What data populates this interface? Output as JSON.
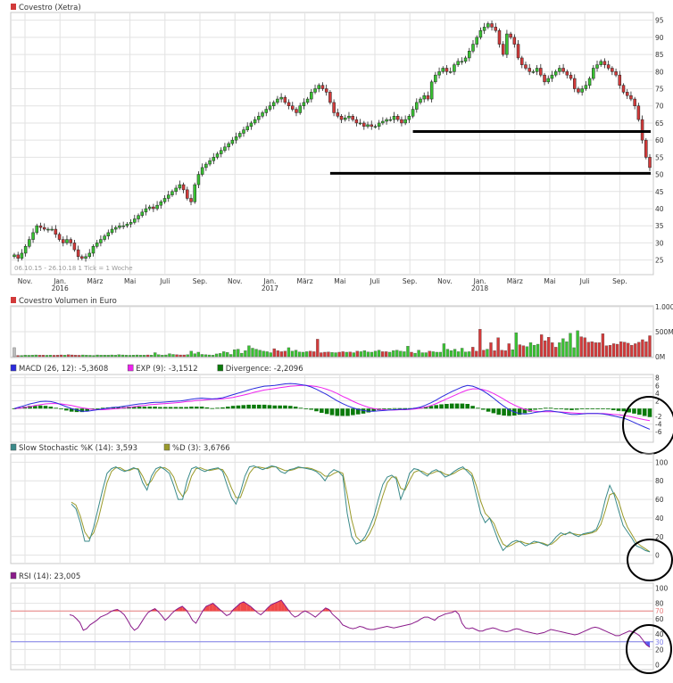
{
  "colors": {
    "up": "#39c232",
    "down": "#d23a3a",
    "grid": "#e2e2e2",
    "frame": "#c8c8c8",
    "text": "#333333",
    "macd": "#2b2bdd",
    "exp": "#ee22ee",
    "div": "#0a7a0a",
    "stochK": "#3a8a8a",
    "stochD": "#9a9a2a",
    "rsi": "#8a1a8a",
    "rsiFill": "#f04a4a",
    "hline70": "#e98080",
    "hline30": "#8080e9"
  },
  "chart_data": [
    {
      "type": "candlestick",
      "title": "Covestro (Xetra)",
      "legend_marker": "down",
      "yticks": [
        25,
        30,
        35,
        40,
        45,
        50,
        55,
        60,
        65,
        70,
        75,
        80,
        85,
        90,
        95
      ],
      "ylim": [
        21,
        97
      ],
      "xticks": [
        "Nov.",
        "Jan.",
        "März",
        "Mai",
        "Juli",
        "Sep.",
        "Nov.",
        "Jan.",
        "März",
        "Mai",
        "Juli",
        "Sep.",
        "Nov.",
        "Jan.",
        "März",
        "Mai",
        "Juli",
        "Sep."
      ],
      "year_labels": [
        "2016",
        "2017",
        "2018"
      ],
      "footer": "06.10.15 - 26.10.18   1 Tick = 1 Woche",
      "support_lines": [
        62.5,
        50.3
      ],
      "close": [
        26.5,
        25.5,
        27,
        29,
        31,
        33,
        35,
        34.5,
        34,
        34,
        34,
        32.5,
        31,
        30,
        31,
        30,
        28,
        26,
        25.5,
        26,
        27,
        29,
        30,
        31,
        32,
        33,
        34,
        34.5,
        35,
        35,
        35.5,
        36,
        37,
        38,
        39,
        40,
        40.5,
        40,
        41,
        42,
        43,
        44,
        45,
        46,
        47,
        45.5,
        43,
        42,
        47,
        50,
        52,
        53,
        54,
        55,
        56,
        57,
        58,
        59,
        60,
        61,
        62,
        63,
        64,
        65,
        66,
        67,
        68,
        69,
        70,
        71,
        72,
        72.5,
        71,
        70,
        69,
        68,
        70,
        71,
        72,
        74,
        75,
        76,
        75,
        74,
        71,
        68,
        67,
        66,
        66.5,
        67,
        66,
        65,
        65,
        64,
        64.5,
        64,
        64,
        65,
        65.5,
        66,
        66,
        67,
        66,
        65,
        66,
        67,
        69,
        71,
        72,
        73,
        72,
        77,
        79,
        80,
        81,
        80,
        80,
        82,
        83,
        83,
        84,
        86,
        88,
        90,
        92,
        93,
        94,
        93,
        92,
        88,
        85,
        91,
        90,
        88,
        84,
        82,
        81,
        80,
        80,
        81,
        79,
        77,
        78,
        79,
        80,
        81,
        80,
        79,
        78,
        75,
        74,
        75,
        76,
        78,
        81,
        82,
        83,
        82,
        81,
        80,
        79,
        76,
        74,
        73,
        72,
        70,
        66,
        60,
        55,
        52
      ]
    },
    {
      "type": "bar",
      "title": "Covestro Volumen in Euro",
      "yticks": [
        "1.000",
        "500M",
        "0M"
      ],
      "ylim": [
        0,
        1000
      ],
      "values": [
        180,
        25,
        25,
        30,
        28,
        30,
        35,
        30,
        30,
        28,
        32,
        28,
        30,
        35,
        30,
        40,
        35,
        30,
        28,
        35,
        30,
        28,
        25,
        35,
        30,
        32,
        30,
        35,
        30,
        40,
        35,
        30,
        28,
        32,
        35,
        30,
        30,
        35,
        32,
        80,
        40,
        30,
        35,
        60,
        45,
        40,
        35,
        35,
        40,
        110,
        60,
        90,
        45,
        40,
        35,
        30,
        55,
        65,
        100,
        85,
        45,
        140,
        150,
        70,
        120,
        220,
        170,
        150,
        130,
        110,
        100,
        80,
        160,
        120,
        100,
        110,
        180,
        110,
        130,
        95,
        90,
        100,
        110,
        100,
        350,
        80,
        90,
        95,
        85,
        80,
        90,
        100,
        90,
        95,
        80,
        110,
        100,
        120,
        95,
        90,
        110,
        130,
        100,
        100,
        90,
        120,
        130,
        110,
        100,
        210,
        90,
        70,
        130,
        80,
        80,
        110,
        100,
        90,
        90,
        260,
        150,
        120,
        150,
        100,
        170,
        95,
        100,
        190,
        110,
        550,
        130,
        150,
        280,
        120,
        380,
        130,
        120,
        260,
        140,
        480,
        240,
        220,
        200,
        280,
        230,
        250,
        440,
        320,
        390,
        280,
        190,
        280,
        360,
        300,
        470,
        180,
        520,
        400,
        380,
        290,
        300,
        280,
        280,
        460,
        220,
        230,
        260,
        250,
        300,
        290,
        270,
        230,
        260,
        290,
        340,
        300,
        420
      ]
    },
    {
      "type": "line",
      "title": "MACD",
      "legend": [
        {
          "label": "MACD (26, 12): -5,3608",
          "color": "macd"
        },
        {
          "label": "EXP (9): -3,1512",
          "color": "exp"
        },
        {
          "label": "Divergence: -2,2096",
          "color": "div"
        }
      ],
      "yticks": [
        8,
        6,
        4,
        2,
        -2,
        -4,
        -6
      ],
      "ylim": [
        -8.5,
        8.6
      ],
      "macd": [
        0,
        0.4,
        0.8,
        1.2,
        1.5,
        1.8,
        1.9,
        1.8,
        1.5,
        1.0,
        0.5,
        0.0,
        -0.4,
        -0.7,
        -0.7,
        -0.5,
        -0.3,
        -0.1,
        0.1,
        0.3,
        0.4,
        0.6,
        0.8,
        1.0,
        1.2,
        1.3,
        1.5,
        1.6,
        1.6,
        1.7,
        1.8,
        1.9,
        2.0,
        2.2,
        2.4,
        2.6,
        2.7,
        2.6,
        2.5,
        2.6,
        2.8,
        3.2,
        3.6,
        4.0,
        4.4,
        4.8,
        5.2,
        5.5,
        5.8,
        5.9,
        6.0,
        6.2,
        6.4,
        6.5,
        6.4,
        6.2,
        6.0,
        5.6,
        5.0,
        4.3,
        3.6,
        2.8,
        2.0,
        1.3,
        0.7,
        0.2,
        -0.2,
        -0.5,
        -0.7,
        -0.7,
        -0.6,
        -0.5,
        -0.4,
        -0.3,
        -0.2,
        -0.2,
        -0.1,
        0.1,
        0.4,
        0.9,
        1.5,
        2.2,
        3.0,
        3.7,
        4.4,
        5.0,
        5.6,
        6.0,
        5.8,
        5.3,
        4.6,
        3.7,
        2.7,
        1.6,
        0.6,
        -0.3,
        -0.9,
        -1.3,
        -1.4,
        -1.3,
        -1.0,
        -0.8,
        -0.6,
        -0.6,
        -0.8,
        -1.0,
        -1.3,
        -1.5,
        -1.5,
        -1.4,
        -1.3,
        -1.3,
        -1.3,
        -1.4,
        -1.6,
        -1.9,
        -2.2,
        -2.5,
        -3.0,
        -3.6,
        -4.2,
        -4.8,
        -5.36
      ],
      "exp": [
        0,
        0.1,
        0.3,
        0.5,
        0.8,
        1.0,
        1.2,
        1.3,
        1.3,
        1.2,
        1.0,
        0.8,
        0.5,
        0.2,
        0.0,
        -0.2,
        -0.3,
        -0.3,
        -0.2,
        -0.1,
        0.0,
        0.2,
        0.3,
        0.5,
        0.7,
        0.8,
        1.0,
        1.1,
        1.2,
        1.3,
        1.4,
        1.5,
        1.6,
        1.8,
        1.9,
        2.1,
        2.2,
        2.3,
        2.4,
        2.4,
        2.5,
        2.7,
        2.9,
        3.2,
        3.5,
        3.8,
        4.2,
        4.5,
        4.8,
        5.0,
        5.2,
        5.4,
        5.6,
        5.8,
        5.9,
        6.0,
        6.0,
        5.9,
        5.7,
        5.4,
        5.0,
        4.5,
        3.9,
        3.2,
        2.6,
        1.9,
        1.3,
        0.8,
        0.3,
        0.0,
        -0.2,
        -0.3,
        -0.4,
        -0.4,
        -0.3,
        -0.3,
        -0.2,
        -0.1,
        0.1,
        0.4,
        0.8,
        1.3,
        1.9,
        2.5,
        3.1,
        3.7,
        4.3,
        4.8,
        5.1,
        5.1,
        4.9,
        4.5,
        3.9,
        3.2,
        2.4,
        1.6,
        0.9,
        0.3,
        -0.2,
        -0.5,
        -0.7,
        -0.8,
        -0.8,
        -0.8,
        -0.8,
        -0.9,
        -1.0,
        -1.1,
        -1.2,
        -1.3,
        -1.3,
        -1.3,
        -1.3,
        -1.3,
        -1.4,
        -1.5,
        -1.6,
        -1.8,
        -2.0,
        -2.3,
        -2.6,
        -2.9,
        -3.15
      ],
      "divergence": [
        0,
        0.3,
        0.5,
        0.7,
        0.7,
        0.8,
        0.7,
        0.5,
        0.2,
        -0.2,
        -0.5,
        -0.8,
        -0.9,
        -0.9,
        -0.7,
        -0.3,
        0.0,
        0.2,
        0.3,
        0.4,
        0.4,
        0.4,
        0.5,
        0.5,
        0.5,
        0.5,
        0.5,
        0.5,
        0.4,
        0.4,
        0.4,
        0.4,
        0.4,
        0.4,
        0.5,
        0.5,
        0.5,
        0.3,
        0.1,
        0.2,
        0.3,
        0.5,
        0.7,
        0.8,
        0.9,
        1.0,
        1.0,
        1.0,
        1.0,
        0.9,
        0.8,
        0.8,
        0.8,
        0.7,
        0.5,
        0.2,
        0.0,
        -0.3,
        -0.7,
        -1.1,
        -1.4,
        -1.7,
        -1.9,
        -1.9,
        -1.9,
        -1.7,
        -1.5,
        -1.3,
        -1.0,
        -0.7,
        -0.4,
        -0.2,
        0.0,
        0.1,
        0.1,
        0.1,
        0.1,
        0.2,
        0.3,
        0.5,
        0.7,
        0.9,
        1.1,
        1.2,
        1.3,
        1.3,
        1.3,
        1.2,
        0.7,
        0.2,
        -0.3,
        -0.8,
        -1.2,
        -1.6,
        -1.8,
        -1.9,
        -1.8,
        -1.6,
        -1.2,
        -0.8,
        -0.3,
        0.0,
        0.2,
        0.2,
        0.0,
        -0.1,
        -0.3,
        -0.4,
        -0.3,
        -0.1,
        0.0,
        0.0,
        0.0,
        -0.1,
        -0.2,
        -0.4,
        -0.6,
        -0.7,
        -1.0,
        -1.3,
        -1.6,
        -1.9,
        -2.2
      ]
    },
    {
      "type": "line",
      "title": "Slow Stochastic",
      "legend": [
        {
          "label": "Slow Stochastic %K (14): 3,593",
          "color": "stochK"
        },
        {
          "label": "%D (3): 3,6766",
          "color": "stochD"
        }
      ],
      "yticks": [
        100,
        80,
        60,
        40,
        20,
        0
      ],
      "ylim": [
        -8,
        108
      ],
      "k": [
        55,
        50,
        35,
        15,
        15,
        30,
        50,
        70,
        88,
        93,
        95,
        92,
        90,
        92,
        94,
        92,
        78,
        70,
        85,
        93,
        95,
        92,
        88,
        75,
        60,
        60,
        80,
        93,
        95,
        92,
        90,
        92,
        93,
        94,
        90,
        75,
        62,
        55,
        68,
        85,
        95,
        96,
        94,
        92,
        94,
        96,
        95,
        90,
        88,
        92,
        93,
        95,
        94,
        93,
        92,
        90,
        86,
        80,
        88,
        92,
        90,
        85,
        45,
        20,
        12,
        14,
        20,
        30,
        42,
        60,
        76,
        84,
        86,
        82,
        60,
        72,
        88,
        93,
        92,
        88,
        85,
        90,
        92,
        89,
        84,
        86,
        90,
        93,
        95,
        90,
        85,
        65,
        45,
        35,
        40,
        28,
        15,
        5,
        10,
        14,
        16,
        14,
        10,
        12,
        15,
        14,
        12,
        10,
        14,
        20,
        24,
        22,
        25,
        22,
        20,
        23,
        24,
        25,
        28,
        40,
        60,
        75,
        65,
        48,
        32,
        25,
        18,
        10,
        8,
        5,
        3.6
      ],
      "d": [
        57,
        54,
        42,
        25,
        18,
        24,
        38,
        58,
        78,
        90,
        94,
        94,
        91,
        91,
        93,
        93,
        85,
        75,
        80,
        89,
        94,
        94,
        91,
        84,
        70,
        63,
        70,
        85,
        93,
        94,
        92,
        91,
        92,
        93,
        92,
        84,
        72,
        62,
        62,
        75,
        88,
        94,
        95,
        94,
        93,
        95,
        95,
        93,
        91,
        91,
        92,
        94,
        94,
        94,
        93,
        91,
        89,
        85,
        85,
        88,
        90,
        88,
        65,
        38,
        20,
        15,
        16,
        23,
        33,
        48,
        64,
        78,
        84,
        84,
        72,
        70,
        80,
        89,
        91,
        90,
        87,
        88,
        90,
        90,
        87,
        86,
        88,
        91,
        93,
        92,
        88,
        75,
        58,
        45,
        40,
        34,
        22,
        12,
        9,
        11,
        14,
        15,
        13,
        12,
        13,
        14,
        13,
        11,
        12,
        16,
        21,
        23,
        24,
        23,
        22,
        22,
        23,
        24,
        26,
        33,
        48,
        65,
        67,
        58,
        42,
        30,
        22,
        14,
        10,
        7,
        3.7
      ]
    },
    {
      "type": "line",
      "title": "RSI",
      "legend": [
        {
          "label": "RSI (14): 23,005",
          "color": "rsi"
        }
      ],
      "yticks": [
        100,
        80,
        70,
        60,
        40,
        30,
        20,
        0
      ],
      "ylim": [
        -5,
        105
      ],
      "levels": [
        70,
        30
      ],
      "values": [
        65,
        64,
        60,
        55,
        45,
        47,
        52,
        55,
        58,
        62,
        64,
        66,
        69,
        71,
        72,
        69,
        65,
        58,
        50,
        45,
        48,
        55,
        62,
        68,
        71,
        73,
        69,
        64,
        58,
        62,
        67,
        71,
        74,
        76,
        72,
        66,
        58,
        54,
        62,
        70,
        76,
        78,
        80,
        76,
        72,
        68,
        64,
        66,
        72,
        76,
        80,
        82,
        79,
        76,
        72,
        68,
        65,
        69,
        74,
        78,
        80,
        82,
        84,
        78,
        72,
        66,
        62,
        64,
        68,
        70,
        68,
        65,
        62,
        66,
        70,
        74,
        72,
        66,
        62,
        58,
        52,
        50,
        48,
        47,
        48,
        50,
        49,
        47,
        46,
        46,
        47,
        48,
        49,
        50,
        49,
        48,
        49,
        50,
        51,
        52,
        53,
        55,
        57,
        60,
        62,
        62,
        60,
        58,
        62,
        64,
        66,
        67,
        68,
        70,
        66,
        54,
        48,
        47,
        48,
        46,
        44,
        44,
        46,
        47,
        48,
        47,
        45,
        44,
        43,
        44,
        46,
        47,
        46,
        44,
        43,
        42,
        41,
        40,
        41,
        42,
        44,
        46,
        45,
        44,
        43,
        42,
        41,
        40,
        39,
        40,
        42,
        44,
        46,
        48,
        49,
        48,
        46,
        44,
        42,
        40,
        38,
        38,
        40,
        42,
        44,
        43,
        41,
        38,
        32,
        26,
        23
      ]
    }
  ]
}
